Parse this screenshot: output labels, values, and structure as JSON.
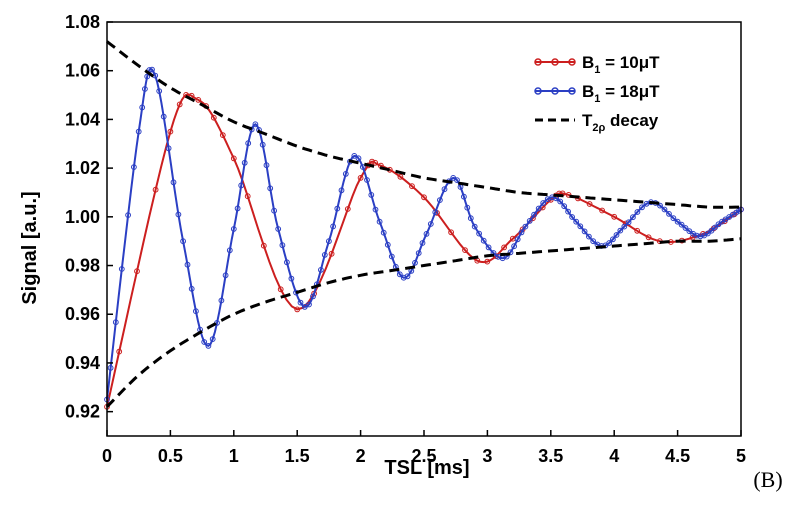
{
  "panel_label": "(B)",
  "chart_data": {
    "type": "line",
    "xlabel": "TSL [ms]",
    "ylabel": "Signal [a.u.]",
    "xlim": [
      0,
      5
    ],
    "ylim": [
      0.91,
      1.08
    ],
    "xticks": [
      "0",
      "0.5",
      "1",
      "1.5",
      "2",
      "2.5",
      "3",
      "3.5",
      "4",
      "4.5",
      "5"
    ],
    "yticks": [
      "0.92",
      "0.94",
      "0.96",
      "0.98",
      "1.00",
      "1.02",
      "1.04",
      "1.06",
      "1.08"
    ],
    "grid": false,
    "legend_position": "top-right",
    "legend": [
      {
        "main": "B",
        "sub": "1",
        "rest": " = 10μT",
        "color": "#cc1f1f",
        "style": "line-marker"
      },
      {
        "main": "B",
        "sub": "1",
        "rest": " = 18μT",
        "color": "#2b3fc4",
        "style": "line-marker"
      },
      {
        "main": "T",
        "sub": "2ρ",
        "rest": " decay",
        "color": "#000000",
        "style": "dashed"
      }
    ],
    "series": [
      {
        "name": "B1 = 10μT",
        "color": "#cc1f1f",
        "x": [
          0,
          0.5,
          0.72,
          1.0,
          1.5,
          2.0,
          2.16,
          2.5,
          2.92,
          3.2,
          3.5,
          3.64,
          4.0,
          4.36,
          4.7,
          5.0
        ],
        "y": [
          0.922,
          1.035,
          1.048,
          1.024,
          0.962,
          1.016,
          1.021,
          1.008,
          0.982,
          0.991,
          1.007,
          1.009,
          1.0,
          0.99,
          0.993,
          1.003
        ]
      },
      {
        "name": "B1 = 18μT",
        "color": "#2b3fc4",
        "x": [
          0,
          0.25,
          0.38,
          0.6,
          0.8,
          1.0,
          1.17,
          1.35,
          1.56,
          1.75,
          1.95,
          2.15,
          2.34,
          2.52,
          2.73,
          2.9,
          3.12,
          3.3,
          3.51,
          3.7,
          3.9,
          4.08,
          4.29,
          4.5,
          4.68,
          4.85,
          5.0
        ],
        "y": [
          0.925,
          1.035,
          1.058,
          0.99,
          0.947,
          0.995,
          1.038,
          0.995,
          0.963,
          0.99,
          1.025,
          0.998,
          0.975,
          0.993,
          1.016,
          0.996,
          0.983,
          0.996,
          1.008,
          0.998,
          0.988,
          0.996,
          1.006,
          0.998,
          0.992,
          0.998,
          1.003
        ]
      }
    ],
    "decay": {
      "name": "T2ρ decay",
      "color": "#000000",
      "x": [
        0,
        0.25,
        0.5,
        0.75,
        1.0,
        1.25,
        1.5,
        1.75,
        2.0,
        2.25,
        2.5,
        2.75,
        3.0,
        3.25,
        3.5,
        3.75,
        4.0,
        4.25,
        4.5,
        4.75,
        5.0
      ],
      "upper": [
        1.072,
        1.062,
        1.053,
        1.046,
        1.039,
        1.034,
        1.029,
        1.025,
        1.022,
        1.019,
        1.016,
        1.014,
        1.012,
        1.01,
        1.009,
        1.008,
        1.007,
        1.006,
        1.005,
        1.004,
        1.004
      ],
      "lower": [
        0.922,
        0.935,
        0.945,
        0.953,
        0.96,
        0.965,
        0.969,
        0.973,
        0.976,
        0.978,
        0.98,
        0.982,
        0.984,
        0.985,
        0.986,
        0.987,
        0.988,
        0.989,
        0.99,
        0.99,
        0.991
      ]
    }
  }
}
